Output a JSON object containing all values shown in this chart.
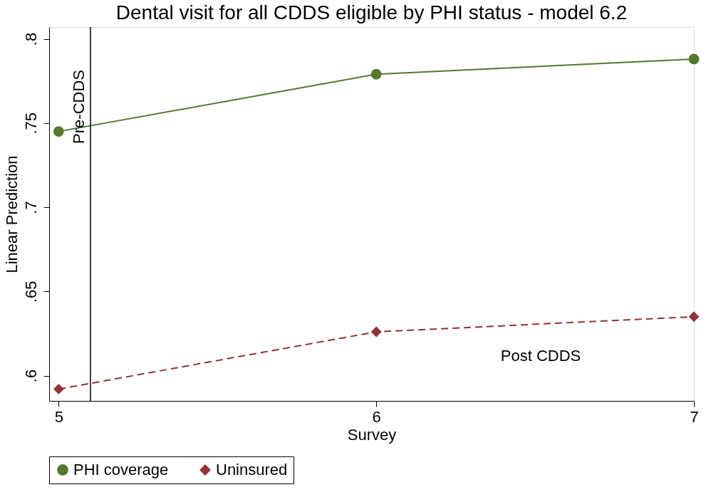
{
  "chart_data": {
    "type": "line",
    "title": "Dental visit for all CDDS eligible by PHI status - model 6.2",
    "xlabel": "Survey",
    "ylabel": "Linear Prediction",
    "x": [
      5,
      6,
      7
    ],
    "series": [
      {
        "name": "PHI coverage",
        "color": "#55782f",
        "values": [
          0.745,
          0.779,
          0.788
        ],
        "marker": "circle",
        "line_style": "solid"
      },
      {
        "name": "Uninsured",
        "color": "#8e3439",
        "values": [
          0.592,
          0.626,
          0.635
        ],
        "marker": "diamond",
        "line_style": "dashed"
      }
    ],
    "xlim": [
      4.97,
      7.0
    ],
    "xticks": [
      5,
      6,
      7
    ],
    "ylim": [
      0.585,
      0.807
    ],
    "yticks": [
      {
        "value": 0.6,
        "label": ".6"
      },
      {
        "value": 0.65,
        "label": ".65"
      },
      {
        "value": 0.7,
        "label": ".7"
      },
      {
        "value": 0.75,
        "label": ".75"
      },
      {
        "value": 0.8,
        "label": ".8"
      }
    ],
    "ref_lines": [
      {
        "axis": "x",
        "value": 5.1,
        "label": "Pre-CDDS",
        "color": "#000000"
      }
    ],
    "annotations": [
      "Post CDDS"
    ],
    "grid": false,
    "legend": "bottom"
  }
}
